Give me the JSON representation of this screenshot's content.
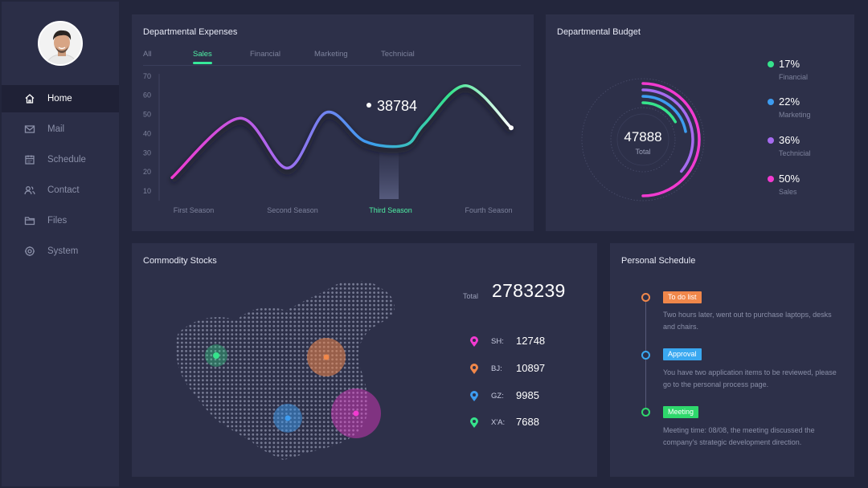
{
  "sidebar": {
    "items": [
      {
        "label": "Home",
        "icon": "home-icon"
      },
      {
        "label": "Mail",
        "icon": "mail-icon"
      },
      {
        "label": "Schedule",
        "icon": "calendar-icon"
      },
      {
        "label": "Contact",
        "icon": "contacts-icon"
      },
      {
        "label": "Files",
        "icon": "folder-icon"
      },
      {
        "label": "System",
        "icon": "gear-icon"
      }
    ]
  },
  "expenses": {
    "title": "Departmental Expenses",
    "tabs": [
      "All",
      "Sales",
      "Financial",
      "Marketing",
      "Technicial"
    ],
    "active_tab": "Sales",
    "highlight_value": "38784",
    "highlight_category": "Third Season"
  },
  "budget": {
    "title": "Departmental Budget",
    "total_value": "47888",
    "total_label": "Total",
    "items": [
      {
        "pct": "17%",
        "name": "Financial",
        "color": "#36e38c"
      },
      {
        "pct": "22%",
        "name": "Marketing",
        "color": "#3d9cf0"
      },
      {
        "pct": "36%",
        "name": "Technicial",
        "color": "#a66bf0"
      },
      {
        "pct": "50%",
        "name": "Sales",
        "color": "#f23ad0"
      }
    ]
  },
  "stocks": {
    "title": "Commodity Stocks",
    "total_label": "Total",
    "total_value": "2783239",
    "rows": [
      {
        "city": "SH:",
        "value": "12748",
        "color": "#f23ad0"
      },
      {
        "city": "BJ:",
        "value": "10897",
        "color": "#f0874a"
      },
      {
        "city": "GZ:",
        "value": "9985",
        "color": "#3d9cf0"
      },
      {
        "city": "X'A:",
        "value": "7688",
        "color": "#36e38c"
      }
    ]
  },
  "schedule": {
    "title": "Personal Schedule",
    "items": [
      {
        "tag": "To do list",
        "color": "#f0874a",
        "text": "Two hours later, went out to purchase laptops, desks and chairs."
      },
      {
        "tag": "Approval",
        "color": "#3aa8f0",
        "text": "You have two application items to be reviewed, please go to the personal process page."
      },
      {
        "tag": "Meeting",
        "color": "#2fd86c",
        "text": "Meeting time: 08/08, the meeting discussed the company's strategic development direction."
      }
    ]
  },
  "chart_data": {
    "type": "line",
    "title": "Departmental Expenses",
    "categories": [
      "First Season",
      "Second Season",
      "Third Season",
      "Fourth Season"
    ],
    "y_ticks": [
      10,
      20,
      30,
      40,
      50,
      60,
      70
    ],
    "ylim": [
      5,
      72
    ],
    "x": [
      0,
      0.7,
      1.2,
      1.6,
      2.0,
      2.42,
      2.62,
      3.05,
      3.52
    ],
    "y": [
      17,
      48,
      22,
      51,
      36,
      34,
      45,
      65,
      43
    ],
    "series": [
      {
        "values": [
          17,
          48,
          22,
          51,
          36,
          34,
          45,
          65,
          43
        ]
      }
    ],
    "highlight": {
      "category": "Third Season",
      "label": "38784"
    },
    "grid": false
  }
}
